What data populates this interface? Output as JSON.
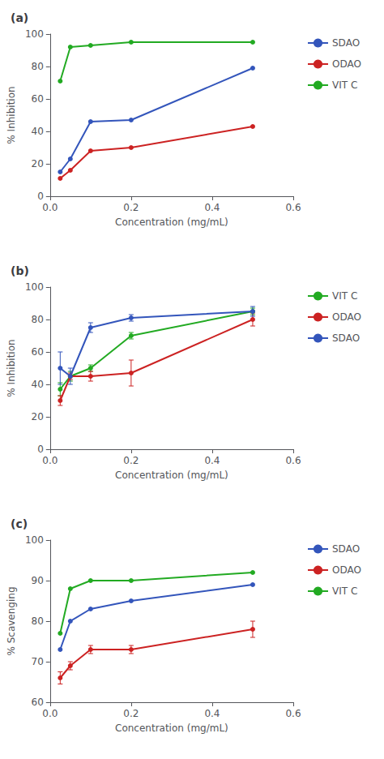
{
  "chart_data": [
    {
      "type": "line",
      "title": "(a)",
      "xlabel": "Concentration (mg/mL)",
      "ylabel": "% Inhibition",
      "x": [
        0.025,
        0.05,
        0.1,
        0.2,
        0.5
      ],
      "series": [
        {
          "name": "SDAO",
          "color": "#3355bb",
          "values": [
            15,
            23,
            46,
            47,
            79
          ]
        },
        {
          "name": "ODAO",
          "color": "#cc2222",
          "values": [
            11,
            16,
            28,
            30,
            43
          ]
        },
        {
          "name": "VIT C",
          "color": "#22aa22",
          "values": [
            71,
            92,
            93,
            95,
            95
          ]
        }
      ],
      "xlim": [
        0,
        0.6
      ],
      "xticks": [
        {
          "value": 0,
          "label": "0.0"
        },
        {
          "value": 0.2,
          "label": "0.2"
        },
        {
          "value": 0.4,
          "label": "0.4"
        },
        {
          "value": 0.6,
          "label": "0.6"
        }
      ],
      "ylim": [
        0,
        100
      ],
      "yticks": [
        0,
        20,
        40,
        60,
        80,
        100
      ],
      "grid": false,
      "legend": "right",
      "marker": "circle"
    },
    {
      "type": "line",
      "title": "(b)",
      "xlabel": "Concentration (mg/mL)",
      "ylabel": "% Inhibition",
      "x": [
        0.025,
        0.05,
        0.1,
        0.2,
        0.5
      ],
      "series": [
        {
          "name": "VIT C",
          "color": "#22aa22",
          "values": [
            37,
            45,
            50,
            70,
            85
          ],
          "err": [
            4,
            3,
            2,
            2,
            2
          ]
        },
        {
          "name": "ODAO",
          "color": "#cc2222",
          "values": [
            30,
            45,
            45,
            47,
            80
          ],
          "err": [
            3,
            2,
            3,
            8,
            4
          ]
        },
        {
          "name": "SDAO",
          "color": "#3355bb",
          "values": [
            50,
            45,
            75,
            81,
            85
          ],
          "err": [
            10,
            5,
            3,
            2,
            3
          ]
        }
      ],
      "xlim": [
        0,
        0.6
      ],
      "xticks": [
        {
          "value": 0,
          "label": "0.0"
        },
        {
          "value": 0.2,
          "label": "0.2"
        },
        {
          "value": 0.4,
          "label": "0.4"
        },
        {
          "value": 0.6,
          "label": "0.6"
        }
      ],
      "ylim": [
        0,
        100
      ],
      "yticks": [
        0,
        20,
        40,
        60,
        80,
        100
      ],
      "grid": false,
      "legend": "right",
      "marker": "circle"
    },
    {
      "type": "line",
      "title": "(c)",
      "xlabel": "Concentration (mg/mL)",
      "ylabel": "% Scavenging",
      "x": [
        0.025,
        0.05,
        0.1,
        0.2,
        0.5
      ],
      "series": [
        {
          "name": "SDAO",
          "color": "#3355bb",
          "values": [
            73,
            80,
            83,
            85,
            89
          ]
        },
        {
          "name": "ODAO",
          "color": "#cc2222",
          "values": [
            66,
            69,
            73,
            73,
            78
          ],
          "err": [
            1.5,
            1,
            1,
            1,
            2
          ]
        },
        {
          "name": "VIT C",
          "color": "#22aa22",
          "values": [
            77,
            88,
            90,
            90,
            92
          ]
        }
      ],
      "xlim": [
        0,
        0.6
      ],
      "xticks": [
        {
          "value": 0,
          "label": "0.0"
        },
        {
          "value": 0.2,
          "label": "0.2"
        },
        {
          "value": 0.4,
          "label": "0.4"
        },
        {
          "value": 0.6,
          "label": "0.6"
        }
      ],
      "ylim": [
        60,
        100
      ],
      "yticks": [
        60,
        70,
        80,
        90,
        100
      ],
      "grid": false,
      "legend": "right",
      "marker": "circle"
    }
  ]
}
